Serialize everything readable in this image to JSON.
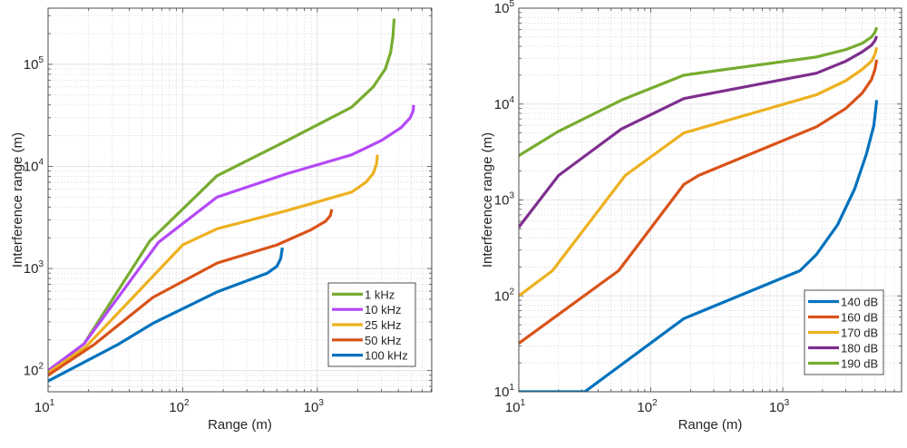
{
  "chart_data": [
    {
      "type": "line",
      "scale": "loglog",
      "title": "",
      "xlabel": "Range  (m)",
      "ylabel": "Interference range  (m)",
      "xlim": [
        10,
        7079
      ],
      "ylim": [
        62,
        355000
      ],
      "xticks": [
        {
          "base": "10",
          "exp": "1",
          "value": 10
        },
        {
          "base": "10",
          "exp": "2",
          "value": 100
        },
        {
          "base": "10",
          "exp": "3",
          "value": 1000
        }
      ],
      "yticks": [
        {
          "base": "10",
          "exp": "2",
          "value": 100
        },
        {
          "base": "10",
          "exp": "3",
          "value": 1000
        },
        {
          "base": "10",
          "exp": "4",
          "value": 10000
        },
        {
          "base": "10",
          "exp": "5",
          "value": 100000
        }
      ],
      "grid": true,
      "legend_position": "bottom-right",
      "series": [
        {
          "name": "1 kHz",
          "color": "#77ac30",
          "x": [
            10,
            18.5,
            57,
            180,
            600,
            1800,
            2600,
            3200,
            3500,
            3650,
            3720
          ],
          "y": [
            98,
            183,
            1860,
            8100,
            18000,
            38000,
            60000,
            90000,
            130000,
            190000,
            280000
          ]
        },
        {
          "name": "10 kHz",
          "color": "#b448f7",
          "x": [
            10,
            18.5,
            66,
            180,
            600,
            1800,
            3000,
            4200,
            4900,
            5150,
            5200
          ],
          "y": [
            100,
            183,
            1800,
            5000,
            8500,
            13000,
            18000,
            24000,
            30000,
            35000,
            40000
          ]
        },
        {
          "name": "25 kHz",
          "color": "#edb120",
          "x": [
            10,
            19,
            100,
            180,
            600,
            1800,
            2300,
            2600,
            2750,
            2800
          ],
          "y": [
            95,
            170,
            1700,
            2450,
            3700,
            5600,
            7000,
            8500,
            10500,
            13000
          ]
        },
        {
          "name": "50 kHz",
          "color": "#d95319",
          "x": [
            10,
            22,
            60,
            180,
            500,
            900,
            1150,
            1250,
            1280
          ],
          "y": [
            90,
            180,
            520,
            1130,
            1700,
            2400,
            2900,
            3300,
            3800
          ]
        },
        {
          "name": "100 kHz",
          "color": "#0072bd",
          "x": [
            10,
            33,
            60,
            180,
            425,
            500,
            535,
            550
          ],
          "y": [
            79,
            180,
            290,
            590,
            900,
            1050,
            1250,
            1600
          ]
        }
      ]
    },
    {
      "type": "line",
      "scale": "loglog",
      "title": "",
      "xlabel": "Range  (m)",
      "ylabel": "Interference range  (m)",
      "xlim": [
        10,
        7943
      ],
      "ylim": [
        10,
        100000
      ],
      "xticks": [
        {
          "base": "10",
          "exp": "1",
          "value": 10
        },
        {
          "base": "10",
          "exp": "2",
          "value": 100
        },
        {
          "base": "10",
          "exp": "3",
          "value": 1000
        }
      ],
      "yticks": [
        {
          "base": "10",
          "exp": "1",
          "value": 10
        },
        {
          "base": "10",
          "exp": "2",
          "value": 100
        },
        {
          "base": "10",
          "exp": "3",
          "value": 1000
        },
        {
          "base": "10",
          "exp": "4",
          "value": 10000
        },
        {
          "base": "10",
          "exp": "5",
          "value": 100000
        }
      ],
      "grid": true,
      "legend_position": "bottom-right",
      "series": [
        {
          "name": "140 dB",
          "color": "#0072bd",
          "x": [
            10,
            31.6,
            178,
            1350,
            1800,
            2600,
            3500,
            4300,
            4900,
            5150
          ],
          "y": [
            10,
            10,
            58,
            183,
            270,
            550,
            1300,
            3000,
            6000,
            11000
          ]
        },
        {
          "name": "160 dB",
          "color": "#d95319",
          "x": [
            10,
            57,
            178,
            230,
            1800,
            3000,
            4000,
            4700,
            5000,
            5150
          ],
          "y": [
            32,
            183,
            1450,
            1800,
            5800,
            9000,
            13000,
            18000,
            23000,
            29000
          ]
        },
        {
          "name": "170 dB",
          "color": "#edb120",
          "x": [
            10,
            18,
            64,
            178,
            1800,
            3000,
            4000,
            4700,
            5000,
            5150
          ],
          "y": [
            100,
            183,
            1800,
            5000,
            12500,
            17500,
            23000,
            28000,
            33000,
            39000
          ]
        },
        {
          "name": "180 dB",
          "color": "#7e2f8e",
          "x": [
            10,
            20,
            60,
            178,
            1800,
            3000,
            4000,
            4700,
            5000,
            5150
          ],
          "y": [
            520,
            1800,
            5500,
            11400,
            21000,
            28000,
            35000,
            41000,
            46000,
            51000
          ]
        },
        {
          "name": "190 dB",
          "color": "#77ac30",
          "x": [
            10,
            20,
            60,
            178,
            1800,
            3000,
            4000,
            4700,
            5000,
            5150
          ],
          "y": [
            2900,
            5200,
            11000,
            20000,
            31000,
            37000,
            43000,
            50000,
            56000,
            63000
          ]
        }
      ]
    }
  ]
}
